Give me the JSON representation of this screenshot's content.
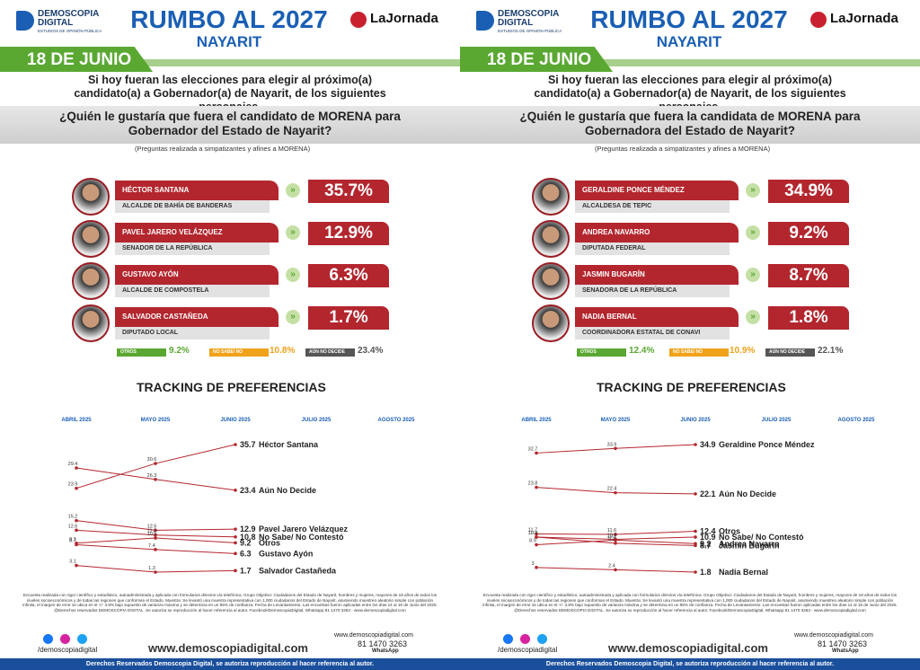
{
  "panels": [
    {
      "brand": "DEMOSCOPIA DIGITAL",
      "brand_sub": "ESTUDIOS DE OPINIÓN PÚBLICA",
      "title": "RUMBO AL 2027",
      "subtitle": "NAYARIT",
      "logo": "LaJornada",
      "date": "18 DE JUNIO",
      "intro": "Si hoy fueran las elecciones para elegir al próximo(a) candidato(a) a Gobernador(a) de Nayarit, de los siguientes personajes,",
      "question": "¿Quién le gustaría que fuera el candidato de MORENA para Gobernador del Estado de Nayarit?",
      "note": "(Preguntas realizada a simpatizantes y afines a MORENA)",
      "candidates": [
        {
          "name": "HÉCTOR SANTANA",
          "role": "ALCALDE DE BAHÍA DE BANDERAS",
          "value": 35.7,
          "value_label": "35.7%"
        },
        {
          "name": "PAVEL JARERO VELÁZQUEZ",
          "role": "SENADOR DE LA REPÚBLICA",
          "value": 12.9,
          "value_label": "12.9%"
        },
        {
          "name": "GUSTAVO AYÓN",
          "role": "ALCALDE DE COMPOSTELA",
          "value": 6.3,
          "value_label": "6.3%"
        },
        {
          "name": "SALVADOR CASTAÑEDA",
          "role": "DIPUTADO LOCAL",
          "value": 1.7,
          "value_label": "1.7%"
        }
      ],
      "summary": [
        {
          "label": "OTROS",
          "value": 9.2,
          "value_label": "9.2%",
          "color": "#5aa832"
        },
        {
          "label": "NO SABE/ NO CONTESTÓ",
          "value": 10.8,
          "value_label": "10.8%",
          "color": "#f0a21b"
        },
        {
          "label": "AÚN NO DECIDE",
          "value": 23.4,
          "value_label": "23.4%",
          "color": "#555555"
        }
      ],
      "tracking": {
        "title": "TRACKING DE PREFERENCIAS",
        "months": [
          "ABRIL 2025",
          "MAYO 2025",
          "JUNIO 2025",
          "JULIO 2025",
          "AGOSTO 2025"
        ],
        "series": [
          {
            "name": "Héctor Santana",
            "values": [
              23.9,
              30.6,
              35.7
            ]
          },
          {
            "name": "Aún No Decide",
            "values": [
              29.4,
              26.3,
              23.4
            ]
          },
          {
            "name": "Pavel Jarero Velázquez",
            "values": [
              15.2,
              12.6,
              12.9
            ]
          },
          {
            "name": "No Sabe/ No Contestó",
            "values": [
              12.6,
              11.3,
              10.8
            ]
          },
          {
            "name": "Otros",
            "values": [
              9.1,
              10.5,
              9.2
            ]
          },
          {
            "name": "Gustavo Ayón",
            "values": [
              8.7,
              7.4,
              6.3
            ]
          },
          {
            "name": "Salvador Castañeda",
            "values": [
              3.1,
              1.3,
              1.7
            ]
          }
        ]
      },
      "methodology": "Encuesta realizada con rigor científico y estadístico, autoadministrada y aplicada con formularios directos vía telefónica. Grupo Objetivo: Ciudadanos del Estado de Nayarit, hombres y mujeres, mayores de 18 años de todos los niveles socioeconómicos y de todas las regiones que conforman el Estado. Muestra: Se levantó una muestra representativa con 1,000 ciudadanos del Estado de Nayarit, asumiendo muestreo aleatorio simple con población infinita, el margen de error se ubica en el +/- 3.8% bajo supuesto de varianza máxima y se determina en un 95% de confianza. Fecha de Levantamiento. Las encuestas fueron aplicadas entre los días 14 al 16 de Junio del 2025. @Derechos reservados DEMOSCOPIA DIGITAL. Se autoriza su reproducción al hacer referencia al autor. Facebook/DemoscopiaDigital, Whatsapp 81 1470 3263 - www.demoscopiadigital.com",
      "social": "/demoscopiadigital",
      "website": "www.demoscopiadigital.com",
      "contact_web": "www.demoscopiadigital.com",
      "phone": "81 1470 3263",
      "whatsapp": "WhatsApp",
      "rights": "Derechos Reservados Demoscopia Digital, se autoriza reproducción al hacer referencia al autor."
    },
    {
      "brand": "DEMOSCOPIA DIGITAL",
      "brand_sub": "ESTUDIOS DE OPINIÓN PÚBLICA",
      "title": "RUMBO AL 2027",
      "subtitle": "NAYARIT",
      "logo": "LaJornada",
      "date": "18 DE JUNIO",
      "intro": "Si hoy fueran las elecciones para elegir al próximo(a) candidato(a) a Gobernador(a) de Nayarit, de los siguientes personajes,",
      "question": "¿Quién le gustaría que fuera la candidata de MORENA para Gobernadora del Estado de Nayarit?",
      "note": "(Preguntas realizada a simpatizantes y afines a MORENA)",
      "candidates": [
        {
          "name": "GERALDINE PONCE MÉNDEZ",
          "role": "ALCALDESA DE TEPIC",
          "value": 34.9,
          "value_label": "34.9%"
        },
        {
          "name": "ANDREA NAVARRO",
          "role": "DIPUTADA FEDERAL",
          "value": 9.2,
          "value_label": "9.2%"
        },
        {
          "name": "JASMIN BUGARÍN",
          "role": "SENADORA DE LA REPÚBLICA",
          "value": 8.7,
          "value_label": "8.7%"
        },
        {
          "name": "NADIA BERNAL",
          "role": "COORDINADORA ESTATAL DE CONAVI",
          "value": 1.8,
          "value_label": "1.8%"
        }
      ],
      "summary": [
        {
          "label": "OTROS",
          "value": 12.4,
          "value_label": "12.4%",
          "color": "#5aa832"
        },
        {
          "label": "NO SABE/ NO CONTESTÓ",
          "value": 10.9,
          "value_label": "10.9%",
          "color": "#f0a21b"
        },
        {
          "label": "AÚN NO DECIDE",
          "value": 22.1,
          "value_label": "22.1%",
          "color": "#555555"
        }
      ],
      "tracking": {
        "title": "TRACKING DE PREFERENCIAS",
        "months": [
          "ABRIL 2025",
          "MAYO 2025",
          "JUNIO 2025",
          "JULIO 2025",
          "AGOSTO 2025"
        ],
        "series": [
          {
            "name": "Geraldine Ponce Méndez",
            "values": [
              32.7,
              33.9,
              34.9
            ]
          },
          {
            "name": "Aún No Decide",
            "values": [
              23.8,
              22.4,
              22.1
            ]
          },
          {
            "name": "Otros",
            "values": [
              11.7,
              11.6,
              12.4
            ]
          },
          {
            "name": "No Sabe/ No Contestó",
            "values": [
              10.9,
              10.3,
              10.9
            ]
          },
          {
            "name": "Andrea Navarro",
            "values": [
              8.9,
              10.1,
              9.2
            ]
          },
          {
            "name": "Jasmin Bugarín",
            "values": [
              10.9,
              9.3,
              8.7
            ]
          },
          {
            "name": "Nadia Bernal",
            "values": [
              3.0,
              2.4,
              1.8
            ]
          }
        ]
      },
      "methodology": "Encuesta realizada con rigor científico y estadístico, autoadministrada y aplicada con formularios directos vía telefónica. Grupo Objetivo: Ciudadanos del Estado de Nayarit, hombres y mujeres, mayores de 18 años de todos los niveles socioeconómicos y de todas las regiones que conforman el Estado. Muestra: Se levantó una muestra representativa con 1,000 ciudadanos del Estado de Nayarit, asumiendo muestreo aleatorio simple con población infinita, el margen de error se ubica en el +/- 3.8% bajo supuesto de varianza máxima y se determina en un 95% de confianza. Fecha de Levantamiento. Las encuestas fueron aplicadas entre los días 14 al 16 de Junio del 2025. @Derechos reservados DEMOSCOPIA DIGITAL. Se autoriza su reproducción al hacer referencia al autor. Facebook/DemoscopiaDigital, Whatsapp 81 1470 3263 - www.demoscopiadigital.com",
      "social": "/demoscopiadigital",
      "website": "www.demoscopiadigital.com",
      "contact_web": "www.demoscopiadigital.com",
      "phone": "81 1470 3263",
      "whatsapp": "WhatsApp",
      "rights": "Derechos Reservados Demoscopia Digital, se autoriza reproducción al hacer referencia al autor."
    }
  ]
}
